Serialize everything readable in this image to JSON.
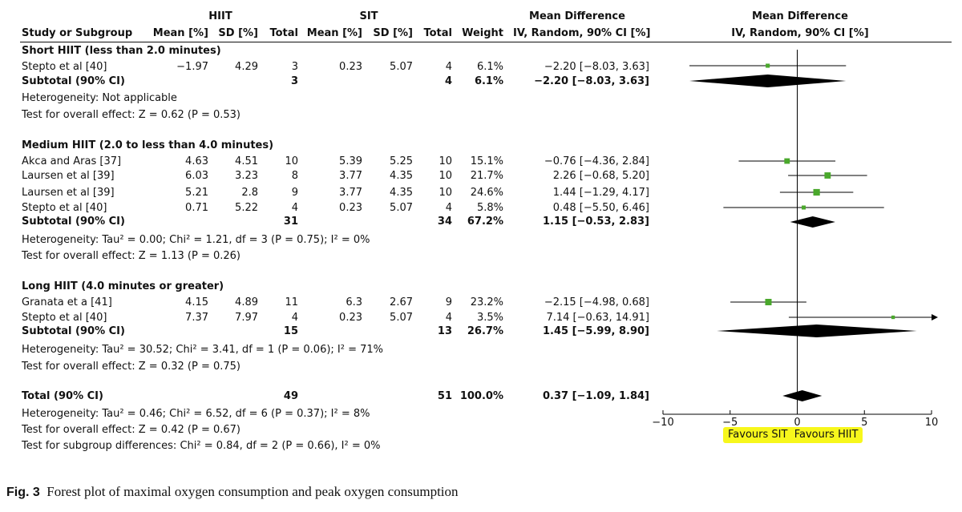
{
  "header": {
    "group1": "HIIT",
    "group2": "SIT",
    "md_title": "Mean Difference",
    "md_sub": "IV, Random, 90% CI [%]",
    "plot_title": "Mean Difference",
    "plot_sub": "IV, Random, 90% CI [%]",
    "col_study": "Study or Subgroup",
    "col_mean1": "Mean [%]",
    "col_sd1": "SD [%]",
    "col_total1": "Total",
    "col_mean2": "Mean [%]",
    "col_sd2": "SD [%]",
    "col_total2": "Total",
    "col_weight": "Weight",
    "col_md": "IV, Random, 90% CI [%]"
  },
  "subgroups": [
    {
      "title": "Short HIIT (less than 2.0 minutes)",
      "studies": [
        {
          "name": "Stepto et al [40]",
          "m1": "−1.97",
          "sd1": "4.29",
          "n1": "3",
          "m2": "0.23",
          "sd2": "5.07",
          "n2": "4",
          "weight": "6.1%",
          "ci": "−2.20 [−8.03, 3.63]"
        }
      ],
      "subtotal": {
        "label": "Subtotal (90% CI)",
        "n1": "3",
        "n2": "4",
        "weight": "6.1%",
        "ci": "−2.20 [−8.03, 3.63]"
      },
      "heterogeneity": "Heterogeneity: Not applicable",
      "overall": "Test for overall effect: Z = 0.62 (P = 0.53)"
    },
    {
      "title": "Medium HIIT (2.0 to less than 4.0 minutes)",
      "studies": [
        {
          "name": "Akca and Aras [37]",
          "m1": "4.63",
          "sd1": "4.51",
          "n1": "10",
          "m2": "5.39",
          "sd2": "5.25",
          "n2": "10",
          "weight": "15.1%",
          "ci": "−0.76 [−4.36, 2.84]"
        },
        {
          "name": "Laursen et al [39]",
          "m1": "6.03",
          "sd1": "3.23",
          "n1": "8",
          "m2": "3.77",
          "sd2": "4.35",
          "n2": "10",
          "weight": "21.7%",
          "ci": "2.26 [−0.68, 5.20]"
        },
        {
          "name": "Laursen et al [39]",
          "m1": "5.21",
          "sd1": "2.8",
          "n1": "9",
          "m2": "3.77",
          "sd2": "4.35",
          "n2": "10",
          "weight": "24.6%",
          "ci": "1.44 [−1.29, 4.17]"
        },
        {
          "name": "Stepto et al [40]",
          "m1": "0.71",
          "sd1": "5.22",
          "n1": "4",
          "m2": "0.23",
          "sd2": "5.07",
          "n2": "4",
          "weight": "5.8%",
          "ci": "0.48 [−5.50, 6.46]"
        }
      ],
      "subtotal": {
        "label": "Subtotal (90% CI)",
        "n1": "31",
        "n2": "34",
        "weight": "67.2%",
        "ci": "1.15 [−0.53, 2.83]"
      },
      "heterogeneity": "Heterogeneity: Tau² = 0.00; Chi² = 1.21, df = 3 (P = 0.75); I² = 0%",
      "overall": "Test for overall effect: Z = 1.13 (P = 0.26)"
    },
    {
      "title": "Long HIIT (4.0 minutes or greater)",
      "studies": [
        {
          "name": "Granata et a [41]",
          "m1": "4.15",
          "sd1": "4.89",
          "n1": "11",
          "m2": "6.3",
          "sd2": "2.67",
          "n2": "9",
          "weight": "23.2%",
          "ci": "−2.15 [−4.98, 0.68]"
        },
        {
          "name": "Stepto et al [40]",
          "m1": "7.37",
          "sd1": "7.97",
          "n1": "4",
          "m2": "0.23",
          "sd2": "5.07",
          "n2": "4",
          "weight": "3.5%",
          "ci": "7.14 [−0.63, 14.91]"
        }
      ],
      "subtotal": {
        "label": "Subtotal (90% CI)",
        "n1": "15",
        "n2": "13",
        "weight": "26.7%",
        "ci": "1.45 [−5.99, 8.90]"
      },
      "heterogeneity": "Heterogeneity: Tau² = 30.52; Chi² = 3.41, df = 1 (P = 0.06); I² = 71%",
      "overall": "Test for overall effect: Z = 0.32 (P = 0.75)"
    }
  ],
  "total": {
    "label": "Total (90% CI)",
    "n1": "49",
    "n2": "51",
    "weight": "100.0%",
    "ci": "0.37 [−1.09, 1.84]",
    "heterogeneity": "Heterogeneity: Tau² = 0.46; Chi² = 6.52, df = 6 (P = 0.37); I² = 8%",
    "overall": "Test for overall effect: Z = 0.42 (P = 0.67)",
    "subgroup_diff": "Test for subgroup differences: Chi² = 0.84, df = 2 (P = 0.66), I² = 0%"
  },
  "favours_left": "Favours SIT",
  "favours_right": "Favours HIIT",
  "caption_fig": "Fig. 3",
  "caption_text": "Forest plot of maximal oxygen consumption and peak oxygen consumption",
  "chart_data": {
    "type": "forest",
    "xlim": [
      -10,
      10
    ],
    "ticks": [
      -10,
      -5,
      0,
      5,
      10
    ],
    "tick_labels": [
      "−10",
      "−5",
      "0",
      "5",
      "10"
    ],
    "colors": {
      "study_marker": "#4aa82c",
      "diamond": "#000000",
      "line": "#000000",
      "highlight": "#f7f71c"
    },
    "studies": [
      {
        "name": "Stepto et al [40]",
        "group": "Short HIIT",
        "md": -2.2,
        "lo": -8.03,
        "hi": 3.63,
        "weight": 6.1
      },
      {
        "name": "Akca and Aras [37]",
        "group": "Medium HIIT",
        "md": -0.76,
        "lo": -4.36,
        "hi": 2.84,
        "weight": 15.1
      },
      {
        "name": "Laursen et al [39]",
        "group": "Medium HIIT",
        "md": 2.26,
        "lo": -0.68,
        "hi": 5.2,
        "weight": 21.7
      },
      {
        "name": "Laursen et al [39]",
        "group": "Medium HIIT",
        "md": 1.44,
        "lo": -1.29,
        "hi": 4.17,
        "weight": 24.6
      },
      {
        "name": "Stepto et al [40]",
        "group": "Medium HIIT",
        "md": 0.48,
        "lo": -5.5,
        "hi": 6.46,
        "weight": 5.8
      },
      {
        "name": "Granata et a [41]",
        "group": "Long HIIT",
        "md": -2.15,
        "lo": -4.98,
        "hi": 0.68,
        "weight": 23.2
      },
      {
        "name": "Stepto et al [40]",
        "group": "Long HIIT",
        "md": 7.14,
        "lo": -0.63,
        "hi": 14.91,
        "weight": 3.5
      }
    ],
    "summaries": [
      {
        "name": "Subtotal Short HIIT",
        "md": -2.2,
        "lo": -8.03,
        "hi": 3.63
      },
      {
        "name": "Subtotal Medium HIIT",
        "md": 1.15,
        "lo": -0.53,
        "hi": 2.83
      },
      {
        "name": "Subtotal Long HIIT",
        "md": 1.45,
        "lo": -5.99,
        "hi": 8.9
      },
      {
        "name": "Total",
        "md": 0.37,
        "lo": -1.09,
        "hi": 1.84
      }
    ]
  }
}
